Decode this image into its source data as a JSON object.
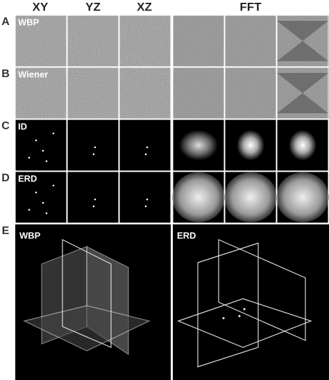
{
  "columns": [
    "XY",
    "YZ",
    "XZ",
    "FFT"
  ],
  "rows": [
    {
      "letter": "A",
      "label": "WBP"
    },
    {
      "letter": "B",
      "label": "Wiener"
    },
    {
      "letter": "C",
      "label": "ID"
    },
    {
      "letter": "D",
      "label": "ERD"
    }
  ],
  "panel_e": {
    "letter": "E",
    "left_label": "WBP",
    "right_label": "ERD"
  }
}
